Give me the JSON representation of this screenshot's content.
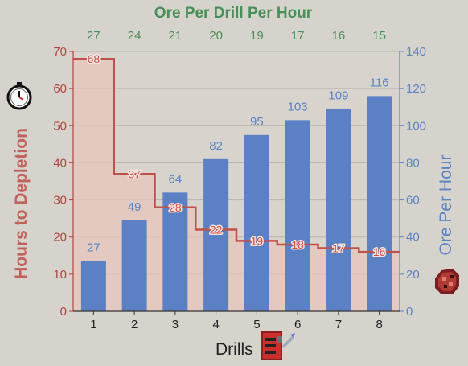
{
  "chart_data": {
    "type": "bar",
    "title": "Ore Per Drill Per Hour",
    "xlabel": "Drills",
    "ylabel_left": "Hours to Depletion",
    "ylabel_right": "Ore Per Hour",
    "categories": [
      "1",
      "2",
      "3",
      "4",
      "5",
      "6",
      "7",
      "8"
    ],
    "top_axis_values": [
      "27",
      "24",
      "21",
      "20",
      "19",
      "17",
      "16",
      "15"
    ],
    "series": [
      {
        "name": "Ore Per Hour",
        "type": "bar",
        "axis": "right",
        "values": [
          27,
          49,
          64,
          82,
          95,
          103,
          109,
          116
        ]
      },
      {
        "name": "Hours to Depletion",
        "type": "step-area",
        "axis": "left",
        "values": [
          68,
          37,
          28,
          22,
          19,
          18,
          17,
          16
        ]
      }
    ],
    "ylim_left": [
      0,
      70
    ],
    "ylim_right": [
      0,
      140
    ],
    "yticks_left": [
      0,
      10,
      20,
      30,
      40,
      50,
      60,
      70
    ],
    "yticks_right": [
      0,
      20,
      40,
      60,
      80,
      100,
      120,
      140
    ],
    "grid": true,
    "legend": "none",
    "colors": {
      "bar": "#5b80c4",
      "step_line": "#c0504a",
      "step_fill": "#e8c6bc",
      "left_axis": "#b0453f",
      "right_axis": "#5b84c4",
      "top_axis": "#4a8f57",
      "background": "#d6d3cd"
    },
    "icons": [
      "clock-icon",
      "drill-icon",
      "ore-icon"
    ]
  }
}
